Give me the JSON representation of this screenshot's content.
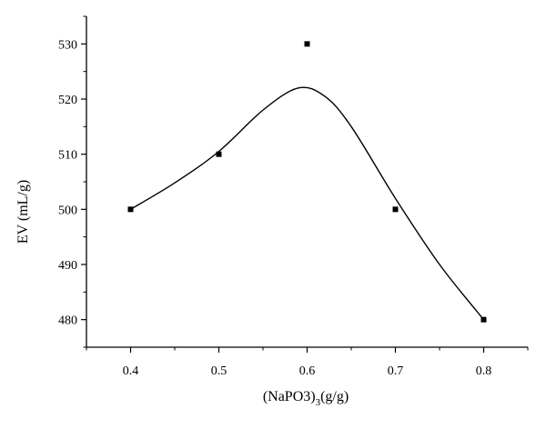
{
  "chart_data": {
    "type": "scatter",
    "xlabel_main": "(NaPO3)",
    "xlabel_sub": "3",
    "xlabel_tail": "(g/g)",
    "ylabel": "EV (mL/g)",
    "xlim": [
      0.35,
      0.85
    ],
    "ylim": [
      475,
      535
    ],
    "x_ticks": [
      0.4,
      0.5,
      0.6,
      0.7,
      0.8
    ],
    "x_tick_labels": [
      "0.4",
      "0.5",
      "0.6",
      "0.7",
      "0.8"
    ],
    "y_ticks": [
      480,
      490,
      500,
      510,
      520,
      530
    ],
    "y_tick_labels": [
      "480",
      "490",
      "500",
      "510",
      "520",
      "530"
    ],
    "points": [
      {
        "x": 0.4,
        "y": 500
      },
      {
        "x": 0.5,
        "y": 510
      },
      {
        "x": 0.6,
        "y": 530
      },
      {
        "x": 0.7,
        "y": 500
      },
      {
        "x": 0.8,
        "y": 480
      }
    ],
    "fit_curve": [
      {
        "x": 0.4,
        "y": 500.0
      },
      {
        "x": 0.45,
        "y": 504.8
      },
      {
        "x": 0.5,
        "y": 510.5
      },
      {
        "x": 0.55,
        "y": 518.0
      },
      {
        "x": 0.59,
        "y": 522.0
      },
      {
        "x": 0.62,
        "y": 520.5
      },
      {
        "x": 0.65,
        "y": 515.0
      },
      {
        "x": 0.7,
        "y": 502.0
      },
      {
        "x": 0.75,
        "y": 490.0
      },
      {
        "x": 0.8,
        "y": 480.0
      }
    ],
    "grid": false,
    "legend": "none"
  }
}
